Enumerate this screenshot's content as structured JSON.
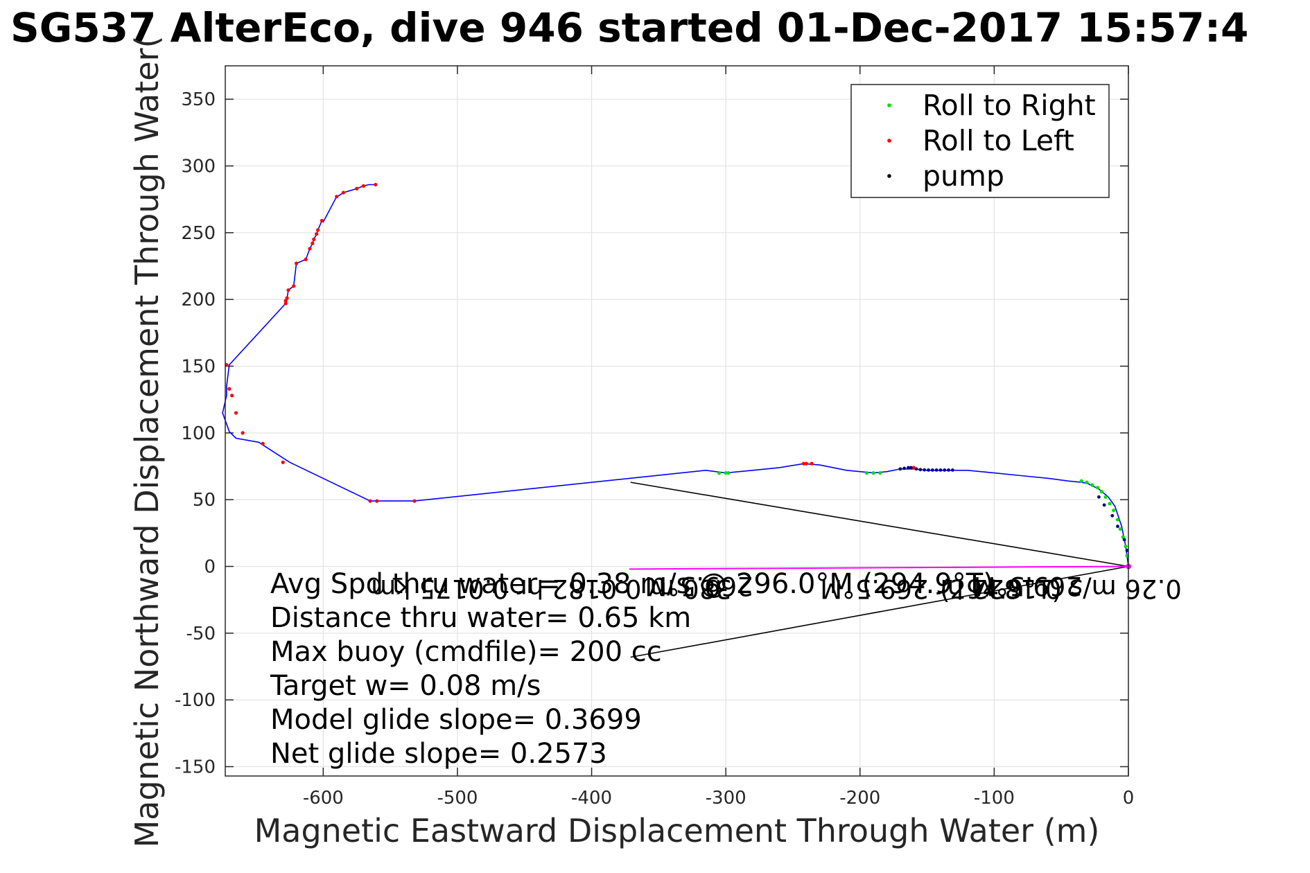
{
  "chart_data": {
    "type": "line",
    "title": "SG537 AlterEco, dive 946 started 01-Dec-2017 15:57:4",
    "xlabel": "Magnetic Eastward Displacement Through Water (m)",
    "ylabel": "Magnetic Northward Displacement Through Water(",
    "xlim": [
      -673,
      0
    ],
    "ylim": [
      -157,
      375
    ],
    "xticks": [
      -600,
      -500,
      -400,
      -300,
      -200,
      -100,
      0
    ],
    "yticks": [
      -150,
      -100,
      -50,
      0,
      50,
      100,
      150,
      200,
      250,
      300,
      350
    ],
    "grid": true,
    "legend_position": "top-right",
    "legend": [
      {
        "label": "Roll to Right",
        "color": "#00dd00"
      },
      {
        "label": "Roll to Left",
        "color": "#ff0000"
      },
      {
        "label": "pump",
        "color": "#000000"
      }
    ],
    "track": {
      "color": "#0000ff",
      "x": [
        0,
        -2,
        -5,
        -10,
        -15,
        -22,
        -30,
        -35,
        -45,
        -60,
        -80,
        -100,
        -120,
        -135,
        -150,
        -160,
        -165,
        -170,
        -180,
        -190,
        -210,
        -230,
        -242,
        -260,
        -280,
        -300,
        -315,
        -532,
        -560,
        -565,
        -625,
        -645,
        -648,
        -665,
        -670,
        -675,
        -672,
        -672,
        -670,
        -628,
        -627,
        -626,
        -622,
        -620,
        -613,
        -610,
        -608,
        -607,
        -605,
        -604,
        -601,
        -600,
        -590,
        -588,
        -585,
        -575,
        -570,
        -566,
        -561
      ],
      "y": [
        0,
        15,
        30,
        45,
        52,
        58,
        62,
        63,
        64,
        66,
        68,
        70,
        72,
        72,
        72,
        73,
        73,
        73,
        71,
        70,
        72,
        76,
        77,
        74,
        72,
        70,
        72,
        49,
        49,
        49,
        78,
        91,
        93,
        96,
        101,
        115,
        128,
        135,
        151,
        197,
        201,
        207,
        210,
        227,
        230,
        238,
        242,
        245,
        249,
        252,
        259,
        258,
        277,
        278,
        280,
        283,
        285,
        286,
        286
      ]
    },
    "roll_right": {
      "x": [
        -1,
        -2,
        -4,
        -6,
        -8,
        -11,
        -14,
        -17,
        -20,
        -23,
        -27,
        -31,
        -35,
        -300,
        -305,
        -298,
        -185,
        -190,
        -195
      ],
      "y": [
        8,
        15,
        22,
        28,
        35,
        42,
        47,
        52,
        56,
        59,
        61,
        63,
        64,
        70,
        70,
        70,
        70,
        70,
        70
      ]
    },
    "roll_left": {
      "x": [
        0,
        -672,
        -670,
        -668,
        -665,
        -660,
        -645,
        -630,
        -628,
        -565,
        -560,
        -532,
        -628,
        -627,
        -626,
        -622,
        -620,
        -613,
        -610,
        -608,
        -607,
        -605,
        -604,
        -601,
        -590,
        -585,
        -575,
        -570,
        -561,
        -240,
        -236,
        -242,
        -160
      ],
      "y": [
        0,
        151,
        133,
        128,
        115,
        100,
        92,
        78,
        197,
        49,
        49,
        49,
        199,
        201,
        207,
        210,
        227,
        230,
        238,
        242,
        245,
        249,
        252,
        259,
        277,
        280,
        283,
        285,
        286,
        77,
        77,
        77,
        74
      ]
    },
    "pump": {
      "x": [
        -1,
        -3,
        -8,
        -12,
        -18,
        -22,
        -170,
        -167,
        -164,
        -162,
        -158,
        -155,
        -152,
        -149,
        -146,
        -143,
        -140,
        -137,
        -134,
        -131
      ],
      "y": [
        12,
        20,
        30,
        38,
        46,
        52,
        73,
        73.5,
        74,
        74,
        73,
        72.5,
        72.3,
        72.2,
        72.2,
        72.2,
        72.2,
        72.2,
        72.2,
        72.2
      ]
    },
    "current_vector": {
      "color": "#ff00ff",
      "x": [
        0,
        -372
      ],
      "y": [
        0,
        -2
      ]
    },
    "heading_lines": [
      {
        "x": [
          0,
          -371
        ],
        "y": [
          0,
          63
        ]
      },
      {
        "x": [
          0,
          -371
        ],
        "y": [
          0,
          -68
        ]
      }
    ],
    "annotations": [
      {
        "text": "269.5°M",
        "x": -75,
        "y": -8,
        "mirrored": true
      },
      {
        "text": "0.26 m/s 0.1822 hr 269.5°M",
        "x": -95,
        "y": -10,
        "mirrored": true
      },
      {
        "text": "269.5°M",
        "x": -320,
        "y": -8,
        "mirrored": true
      },
      {
        "text": "380 m 0.0182 hr  0.0175 km",
        "x": -430,
        "y": -10,
        "mirrored": true
      },
      {
        "text": "(294.9°T)",
        "x": -95,
        "y": -18,
        "mirrored": false
      }
    ],
    "stats": [
      "Avg Spd thru water= 0.38 m/s @ 296.0°M (294.9°T)",
      "Distance thru water=  0.65 km",
      "Max buoy (cmdfile)= 200 cc",
      "Target w= 0.08 m/s",
      "Model glide slope= 0.3699",
      "Net glide slope= 0.2573"
    ]
  }
}
